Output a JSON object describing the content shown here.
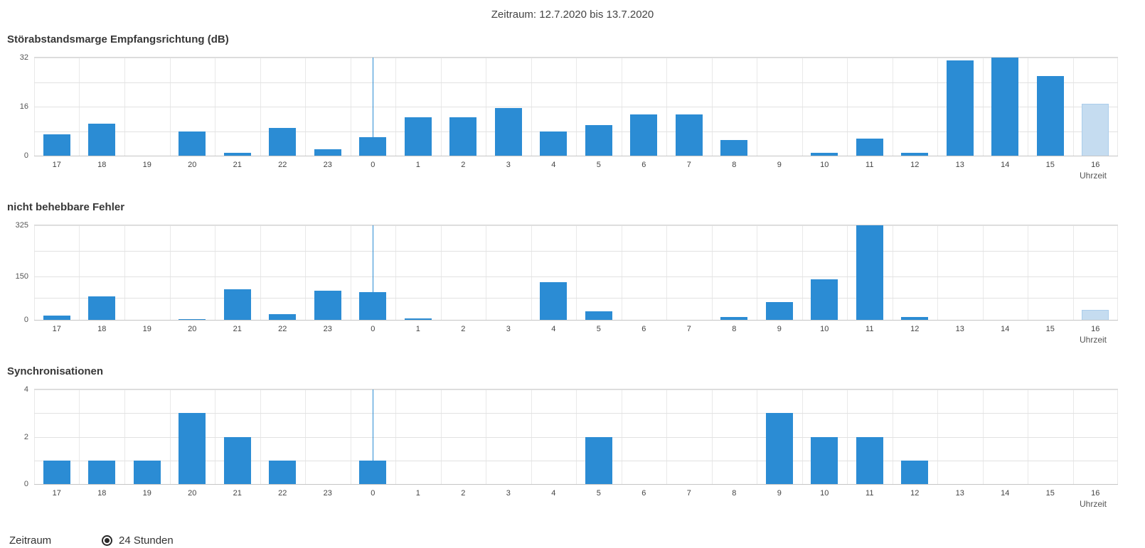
{
  "header": {
    "title": "Zeitraum: 12.7.2020 bis 13.7.2020"
  },
  "x_axis_label": "Uhrzeit",
  "hours": [
    "17",
    "18",
    "19",
    "20",
    "21",
    "22",
    "23",
    "0",
    "1",
    "2",
    "3",
    "4",
    "5",
    "6",
    "7",
    "8",
    "9",
    "10",
    "11",
    "12",
    "13",
    "14",
    "15",
    "16"
  ],
  "separator_index": 7,
  "current_hour_index": 23,
  "colors": {
    "bar": "#2b8cd4",
    "bar_incomplete_fill": "#c5dcf0",
    "bar_incomplete_border": "#abcdec",
    "grid_horizontal": "#e2e2e2",
    "grid_vertical": "#e9e9e9",
    "axis_line": "#c5c5c5",
    "day_separator": "#2b8cd4"
  },
  "chart_data": [
    {
      "type": "bar",
      "title": "Störabstandsmarge Empfangsrichtung (dB)",
      "ylim": [
        0,
        32
      ],
      "yticks": [
        0,
        16,
        32
      ],
      "gridlines": [
        8,
        16,
        24,
        32
      ],
      "categories": [
        "17",
        "18",
        "19",
        "20",
        "21",
        "22",
        "23",
        "0",
        "1",
        "2",
        "3",
        "4",
        "5",
        "6",
        "7",
        "8",
        "9",
        "10",
        "11",
        "12",
        "13",
        "14",
        "15",
        "16"
      ],
      "values": [
        7,
        10.5,
        0,
        8,
        1,
        9,
        2,
        6,
        12.5,
        12.5,
        15.5,
        8,
        10,
        13.5,
        13.5,
        5,
        0,
        1,
        5.5,
        1,
        31,
        32,
        26,
        17
      ],
      "incomplete_last_bar": true,
      "xlabel": "Uhrzeit",
      "legend": "none",
      "grid": true
    },
    {
      "type": "bar",
      "title": "nicht behebbare Fehler",
      "ylim": [
        0,
        325
      ],
      "yticks": [
        0,
        150,
        325
      ],
      "gridlines": [
        75,
        150,
        237.5,
        325
      ],
      "categories": [
        "17",
        "18",
        "19",
        "20",
        "21",
        "22",
        "23",
        "0",
        "1",
        "2",
        "3",
        "4",
        "5",
        "6",
        "7",
        "8",
        "9",
        "10",
        "11",
        "12",
        "13",
        "14",
        "15",
        "16"
      ],
      "values": [
        15,
        80,
        0,
        2,
        105,
        20,
        100,
        95,
        5,
        0,
        0,
        130,
        30,
        0,
        0,
        10,
        60,
        140,
        325,
        10,
        0,
        0,
        0,
        35
      ],
      "incomplete_last_bar": true,
      "xlabel": "Uhrzeit",
      "legend": "none",
      "grid": true
    },
    {
      "type": "bar",
      "title": "Synchronisationen",
      "ylim": [
        0,
        4
      ],
      "yticks": [
        0,
        2,
        4
      ],
      "gridlines": [
        1,
        2,
        3,
        4
      ],
      "categories": [
        "17",
        "18",
        "19",
        "20",
        "21",
        "22",
        "23",
        "0",
        "1",
        "2",
        "3",
        "4",
        "5",
        "6",
        "7",
        "8",
        "9",
        "10",
        "11",
        "12",
        "13",
        "14",
        "15",
        "16"
      ],
      "values": [
        1,
        1,
        1,
        3,
        2,
        1,
        0,
        1,
        0,
        0,
        0,
        0,
        2,
        0,
        0,
        0,
        3,
        2,
        2,
        1,
        0,
        0,
        0,
        0
      ],
      "incomplete_last_bar": false,
      "xlabel": "Uhrzeit",
      "legend": "none",
      "grid": true
    }
  ],
  "footer": {
    "label": "Zeitraum",
    "radio_label": "24 Stunden",
    "radio_selected": true
  }
}
